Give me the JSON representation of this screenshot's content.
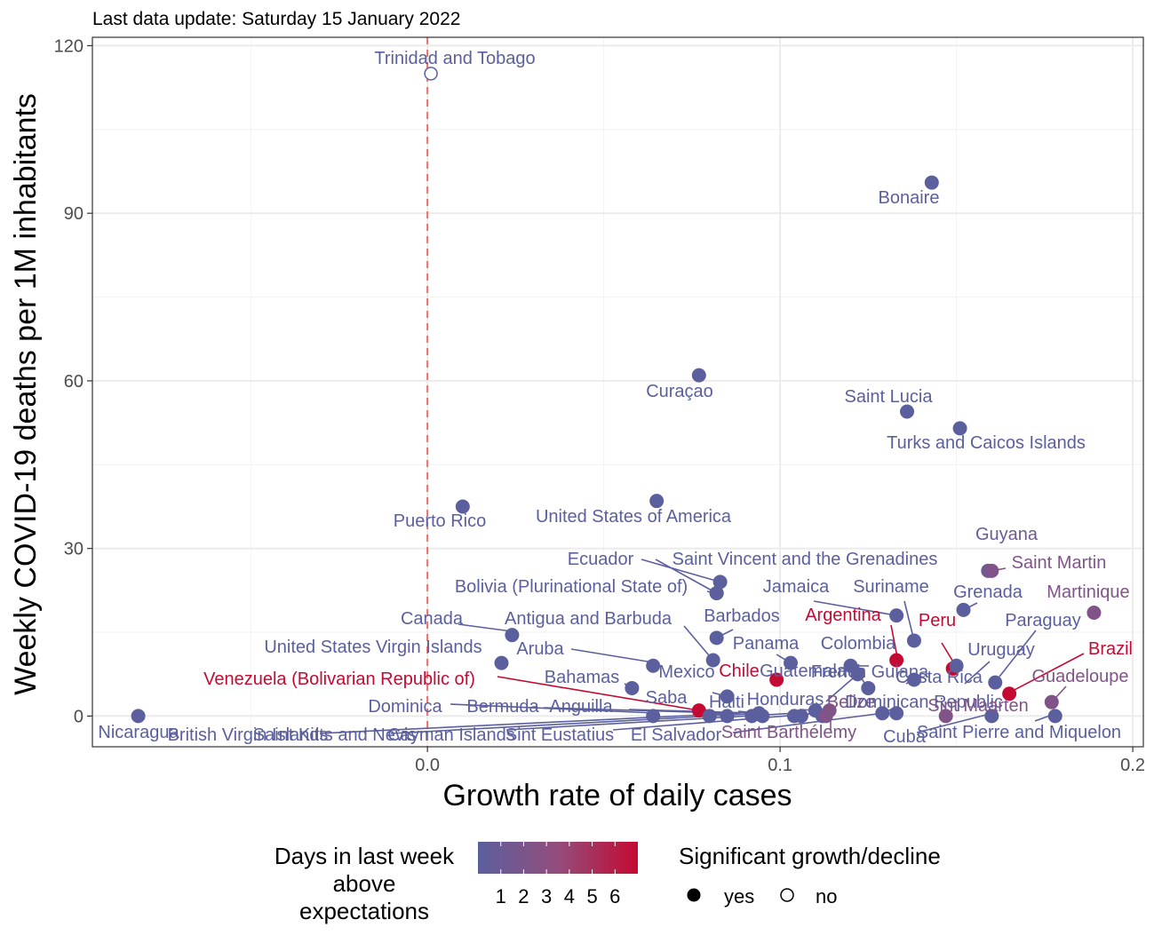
{
  "chart_data": {
    "type": "scatter",
    "subtitle": "Last data update: Saturday 15 January 2022",
    "xlabel": "Growth rate of daily cases",
    "ylabel": "Weekly COVID-19 deaths per 1M inhabitants",
    "xlim": [
      -0.095,
      0.203
    ],
    "ylim": [
      -5.5,
      121.5
    ],
    "x_ticks": [
      0.0,
      0.1,
      0.2
    ],
    "x_tick_labels": [
      "0.0",
      "0.1",
      "0.2"
    ],
    "y_ticks": [
      0,
      30,
      60,
      90,
      120
    ],
    "y_tick_labels": [
      "0",
      "30",
      "60",
      "90",
      "120"
    ],
    "grid": true,
    "reference_line_x": 0,
    "colors": {
      "1": "#5b5f9d",
      "2": "#6d5a93",
      "3": "#805488",
      "4": "#934d7c",
      "5": "#a8436c",
      "6": "#bb3556",
      "7": "#c40a32"
    },
    "legend_color": {
      "title_lines": [
        "Days in last week",
        "above",
        "expectations"
      ],
      "labels": [
        "1",
        "2",
        "3",
        "4",
        "5",
        "6"
      ]
    },
    "legend_shape": {
      "title": "Significant growth/decline",
      "labels": [
        "yes",
        "no"
      ]
    },
    "points": [
      {
        "name": "Trinidad and Tobago",
        "x": 0.001,
        "y": 115.0,
        "days": 1,
        "sig": false
      },
      {
        "name": "Bonaire",
        "x": 0.143,
        "y": 95.5,
        "days": 1,
        "sig": true
      },
      {
        "name": "Curaçao",
        "x": 0.077,
        "y": 61.0,
        "days": 1,
        "sig": true
      },
      {
        "name": "Saint Lucia",
        "x": 0.136,
        "y": 54.5,
        "days": 1,
        "sig": true
      },
      {
        "name": "Turks and Caicos Islands",
        "x": 0.151,
        "y": 51.5,
        "days": 1,
        "sig": true
      },
      {
        "name": "Puerto Rico",
        "x": 0.01,
        "y": 37.5,
        "days": 1,
        "sig": true
      },
      {
        "name": "United States of America",
        "x": 0.065,
        "y": 38.5,
        "days": 1,
        "sig": true
      },
      {
        "name": "Guyana",
        "x": 0.159,
        "y": 26.0,
        "days": 2,
        "sig": true
      },
      {
        "name": "Saint Martin",
        "x": 0.16,
        "y": 26.0,
        "days": 3,
        "sig": true
      },
      {
        "name": "Ecuador",
        "x": 0.083,
        "y": 24.0,
        "days": 1,
        "sig": true
      },
      {
        "name": "Saint Vincent and the Grenadines",
        "x": 0.082,
        "y": 22.0,
        "days": 1,
        "sig": true
      },
      {
        "name": "Bolivia (Plurinational State of)",
        "x": 0.082,
        "y": 22.0,
        "days": 1,
        "sig": true
      },
      {
        "name": "Jamaica",
        "x": 0.133,
        "y": 18.0,
        "days": 1,
        "sig": true
      },
      {
        "name": "Suriname",
        "x": 0.138,
        "y": 13.5,
        "days": 1,
        "sig": true
      },
      {
        "name": "Grenada",
        "x": 0.152,
        "y": 19.0,
        "days": 1,
        "sig": true
      },
      {
        "name": "Martinique",
        "x": 0.189,
        "y": 18.5,
        "days": 3,
        "sig": true
      },
      {
        "name": "Argentina",
        "x": 0.133,
        "y": 10.0,
        "days": 7,
        "sig": true
      },
      {
        "name": "Peru",
        "x": 0.149,
        "y": 8.5,
        "days": 7,
        "sig": true
      },
      {
        "name": "Paraguay",
        "x": 0.161,
        "y": 6.0,
        "days": 1,
        "sig": true
      },
      {
        "name": "Brazil",
        "x": 0.165,
        "y": 4.0,
        "days": 7,
        "sig": true
      },
      {
        "name": "Uruguay",
        "x": 0.15,
        "y": 9.0,
        "days": 1,
        "sig": true
      },
      {
        "name": "Barbados",
        "x": 0.082,
        "y": 14.0,
        "days": 1,
        "sig": true
      },
      {
        "name": "Antigua and Barbuda",
        "x": 0.081,
        "y": 10.0,
        "days": 1,
        "sig": true
      },
      {
        "name": "Canada",
        "x": 0.024,
        "y": 14.5,
        "days": 1,
        "sig": true
      },
      {
        "name": "United States Virgin Islands",
        "x": 0.021,
        "y": 9.5,
        "days": 1,
        "sig": true
      },
      {
        "name": "Aruba",
        "x": 0.064,
        "y": 9.0,
        "days": 1,
        "sig": true
      },
      {
        "name": "Panama",
        "x": 0.103,
        "y": 9.5,
        "days": 1,
        "sig": true
      },
      {
        "name": "Colombia",
        "x": 0.12,
        "y": 9.0,
        "days": 1,
        "sig": true
      },
      {
        "name": "French Guiana",
        "x": 0.125,
        "y": 5.0,
        "days": 1,
        "sig": true
      },
      {
        "name": "Costa Rica",
        "x": 0.138,
        "y": 6.5,
        "days": 1,
        "sig": true
      },
      {
        "name": "Guadeloupe",
        "x": 0.177,
        "y": 2.5,
        "days": 3,
        "sig": true
      },
      {
        "name": "Bahamas",
        "x": 0.058,
        "y": 5.0,
        "days": 1,
        "sig": true
      },
      {
        "name": "Mexico",
        "x": 0.085,
        "y": 3.5,
        "days": 1,
        "sig": true
      },
      {
        "name": "Chile",
        "x": 0.099,
        "y": 6.5,
        "days": 7,
        "sig": true
      },
      {
        "name": "Guatemala",
        "x": 0.122,
        "y": 7.5,
        "days": 1,
        "sig": true
      },
      {
        "name": "Venezuela (Bolivarian Republic of)",
        "x": 0.077,
        "y": 1.0,
        "days": 7,
        "sig": true
      },
      {
        "name": "Saba",
        "x": 0.08,
        "y": 0.0,
        "days": 1,
        "sig": true
      },
      {
        "name": "Haiti",
        "x": 0.094,
        "y": 0.5,
        "days": 1,
        "sig": true
      },
      {
        "name": "Honduras",
        "x": 0.11,
        "y": 1.0,
        "days": 1,
        "sig": true
      },
      {
        "name": "Belize",
        "x": 0.114,
        "y": 1.0,
        "days": 3,
        "sig": true
      },
      {
        "name": "Dominican Republic",
        "x": 0.129,
        "y": 0.5,
        "days": 1,
        "sig": true
      },
      {
        "name": "Sint Maarten",
        "x": 0.147,
        "y": 0.0,
        "days": 3,
        "sig": true
      },
      {
        "name": "Dominica",
        "x": 0.064,
        "y": 0.0,
        "days": 1,
        "sig": true
      },
      {
        "name": "Bermuda",
        "x": 0.085,
        "y": 0.0,
        "days": 1,
        "sig": true
      },
      {
        "name": "Anguilla",
        "x": 0.095,
        "y": 0.0,
        "days": 1,
        "sig": true
      },
      {
        "name": "Nicaragua",
        "x": -0.082,
        "y": 0.0,
        "days": 1,
        "sig": true
      },
      {
        "name": "British Virgin Islands",
        "x": 0.092,
        "y": 0.0,
        "days": 1,
        "sig": true
      },
      {
        "name": "Saint Kitts and Nevis",
        "x": 0.104,
        "y": 0.0,
        "days": 1,
        "sig": true
      },
      {
        "name": "Cayman Islands",
        "x": 0.106,
        "y": 0.0,
        "days": 1,
        "sig": true
      },
      {
        "name": "Sint Eustatius",
        "x": 0.112,
        "y": 0.0,
        "days": 1,
        "sig": true
      },
      {
        "name": "El Salvador",
        "x": 0.133,
        "y": 0.5,
        "days": 1,
        "sig": true
      },
      {
        "name": "Saint Barthélemy",
        "x": 0.113,
        "y": 0.0,
        "days": 3,
        "sig": true
      },
      {
        "name": "Cuba",
        "x": 0.16,
        "y": 0.0,
        "days": 1,
        "sig": true
      },
      {
        "name": "Saint Pierre and Miquelon",
        "x": 0.178,
        "y": 0.0,
        "days": 1,
        "sig": true
      }
    ]
  }
}
